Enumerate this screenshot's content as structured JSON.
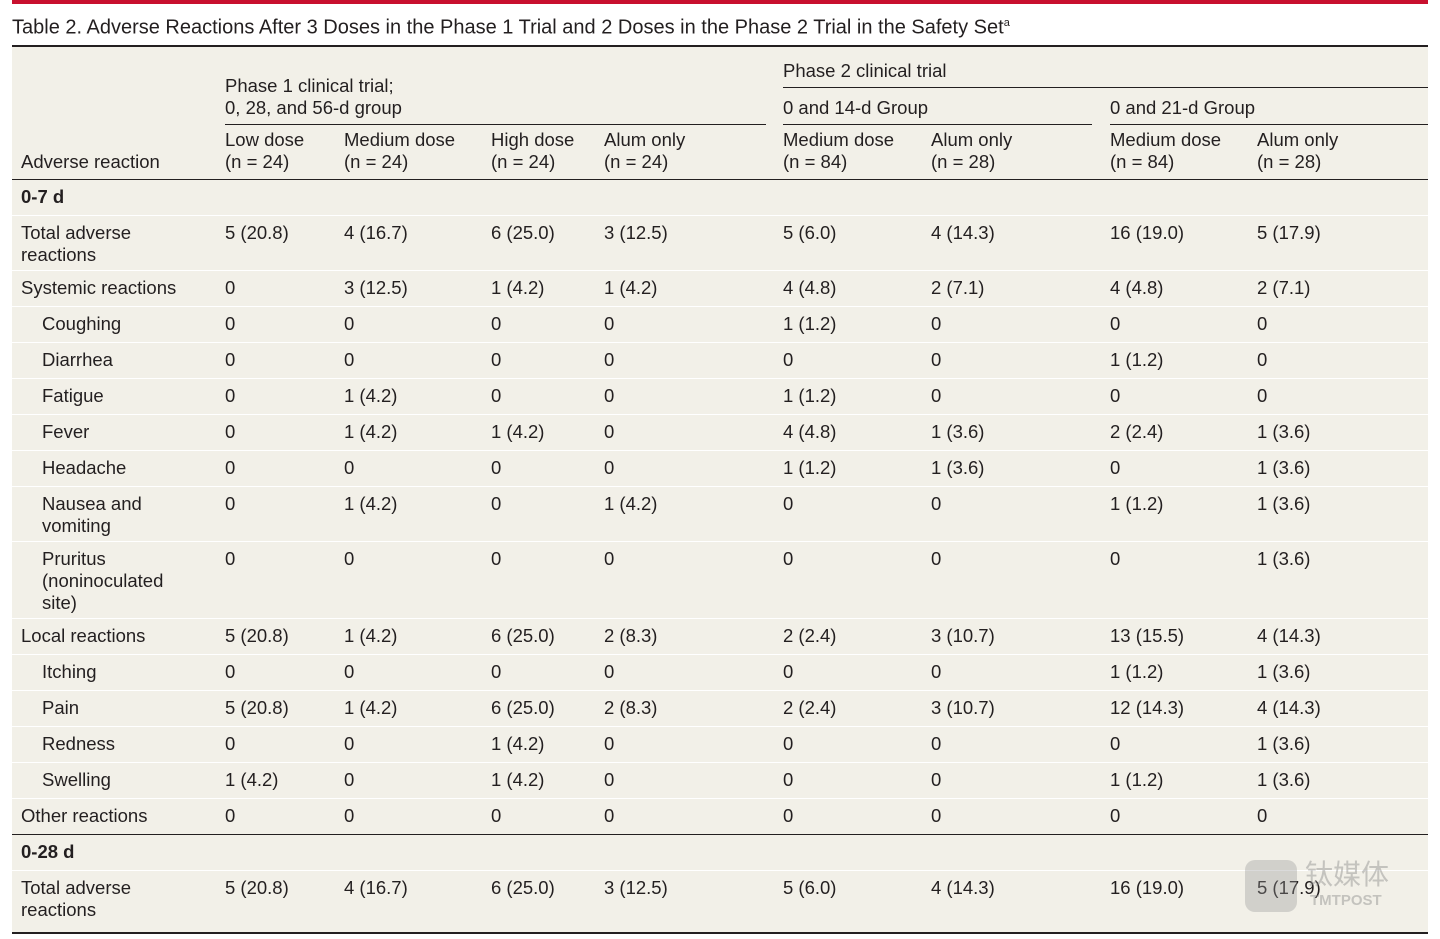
{
  "title": "Table 2. Adverse Reactions After 3 Doses in the Phase 1 Trial and 2 Doses in the Phase 2 Trial in the Safety Set",
  "title_superscript": "a",
  "header": {
    "row_label": "Adverse reaction",
    "phase1": [
      "Phase 1 clinical trial;",
      "0, 28, and 56-d group"
    ],
    "phase2": "Phase 2 clinical trial",
    "groups": [
      "0 and 14-d Group",
      "0 and 21-d Group"
    ],
    "columns": [
      [
        "Low dose",
        "(n = 24)"
      ],
      [
        "Medium dose",
        "(n = 24)"
      ],
      [
        "High dose",
        "(n = 24)"
      ],
      [
        "Alum only",
        "(n = 24)"
      ],
      [
        "Medium dose",
        "(n = 84)"
      ],
      [
        "Alum only",
        "(n = 28)"
      ],
      [
        "Medium dose",
        "(n = 84)"
      ],
      [
        "Alum only",
        "(n = 28)"
      ]
    ]
  },
  "sections": [
    {
      "label": "0-7 d",
      "rows": [
        {
          "label": [
            "Total adverse",
            "reactions"
          ],
          "indent": false,
          "cells": [
            "5 (20.8)",
            "4 (16.7)",
            "6 (25.0)",
            "3 (12.5)",
            "5 (6.0)",
            "4 (14.3)",
            "16 (19.0)",
            "5 (17.9)"
          ]
        },
        {
          "label": [
            "Systemic reactions"
          ],
          "indent": false,
          "cells": [
            "0",
            "3 (12.5)",
            "1 (4.2)",
            "1 (4.2)",
            "4 (4.8)",
            "2 (7.1)",
            "4 (4.8)",
            "2 (7.1)"
          ]
        },
        {
          "label": [
            "Coughing"
          ],
          "indent": true,
          "cells": [
            "0",
            "0",
            "0",
            "0",
            "1 (1.2)",
            "0",
            "0",
            "0"
          ]
        },
        {
          "label": [
            "Diarrhea"
          ],
          "indent": true,
          "cells": [
            "0",
            "0",
            "0",
            "0",
            "0",
            "0",
            "1 (1.2)",
            "0"
          ]
        },
        {
          "label": [
            "Fatigue"
          ],
          "indent": true,
          "cells": [
            "0",
            "1 (4.2)",
            "0",
            "0",
            "1 (1.2)",
            "0",
            "0",
            "0"
          ]
        },
        {
          "label": [
            "Fever"
          ],
          "indent": true,
          "cells": [
            "0",
            "1 (4.2)",
            "1 (4.2)",
            "0",
            "4 (4.8)",
            "1 (3.6)",
            "2 (2.4)",
            "1 (3.6)"
          ]
        },
        {
          "label": [
            "Headache"
          ],
          "indent": true,
          "cells": [
            "0",
            "0",
            "0",
            "0",
            "1 (1.2)",
            "1 (3.6)",
            "0",
            "1 (3.6)"
          ]
        },
        {
          "label": [
            "Nausea and",
            "vomiting"
          ],
          "indent": true,
          "cells": [
            "0",
            "1 (4.2)",
            "0",
            "1 (4.2)",
            "0",
            "0",
            "1 (1.2)",
            "1 (3.6)"
          ]
        },
        {
          "label": [
            "Pruritus",
            "(noninoculated",
            "site)"
          ],
          "indent": true,
          "cells": [
            "0",
            "0",
            "0",
            "0",
            "0",
            "0",
            "0",
            "1 (3.6)"
          ]
        },
        {
          "label": [
            "Local reactions"
          ],
          "indent": false,
          "cells": [
            "5 (20.8)",
            "1 (4.2)",
            "6 (25.0)",
            "2 (8.3)",
            "2 (2.4)",
            "3 (10.7)",
            "13 (15.5)",
            "4 (14.3)"
          ]
        },
        {
          "label": [
            "Itching"
          ],
          "indent": true,
          "cells": [
            "0",
            "0",
            "0",
            "0",
            "0",
            "0",
            "1 (1.2)",
            "1 (3.6)"
          ]
        },
        {
          "label": [
            "Pain"
          ],
          "indent": true,
          "cells": [
            "5 (20.8)",
            "1 (4.2)",
            "6 (25.0)",
            "2 (8.3)",
            "2 (2.4)",
            "3 (10.7)",
            "12 (14.3)",
            "4 (14.3)"
          ]
        },
        {
          "label": [
            "Redness"
          ],
          "indent": true,
          "cells": [
            "0",
            "0",
            "1 (4.2)",
            "0",
            "0",
            "0",
            "0",
            "1 (3.6)"
          ]
        },
        {
          "label": [
            "Swelling"
          ],
          "indent": true,
          "cells": [
            "1 (4.2)",
            "0",
            "1 (4.2)",
            "0",
            "0",
            "0",
            "1 (1.2)",
            "1 (3.6)"
          ]
        },
        {
          "label": [
            "Other reactions"
          ],
          "indent": false,
          "cells": [
            "0",
            "0",
            "0",
            "0",
            "0",
            "0",
            "0",
            "0"
          ]
        }
      ]
    },
    {
      "label": "0-28 d",
      "rows": [
        {
          "label": [
            "Total adverse",
            "reactions"
          ],
          "indent": false,
          "cells": [
            "5 (20.8)",
            "4 (16.7)",
            "6 (25.0)",
            "3 (12.5)",
            "5 (6.0)",
            "4 (14.3)",
            "16 (19.0)",
            "5 (17.9)"
          ]
        }
      ]
    }
  ],
  "watermark": [
    "钛媒体",
    "TMTPOST"
  ]
}
